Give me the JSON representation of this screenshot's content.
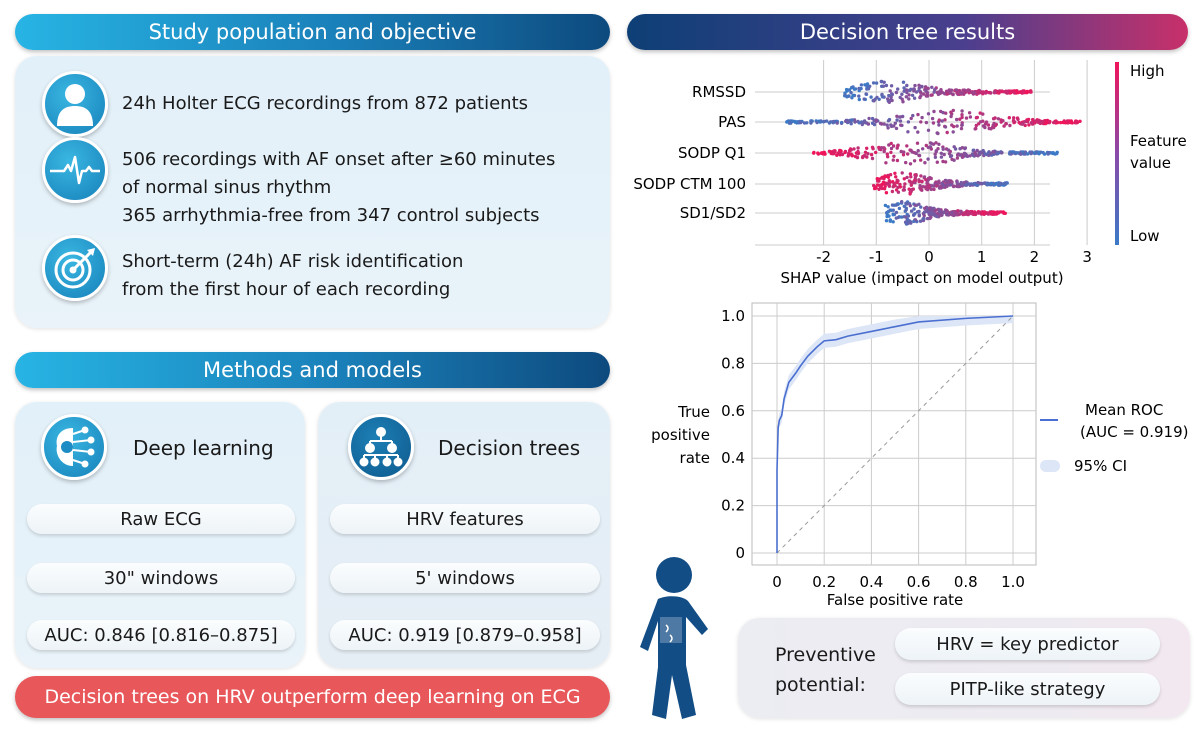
{
  "study": {
    "title": "Study population and objective",
    "items": [
      {
        "icon": "person-icon",
        "lines": [
          "24h Holter ECG recordings from 872 patients"
        ]
      },
      {
        "icon": "ecg-heartbeat-icon",
        "lines": [
          "506 recordings with AF onset after ≥60 minutes",
          "of normal sinus rhythm",
          "365 arrhythmia-free from 347 control subjects"
        ]
      },
      {
        "icon": "target-icon",
        "lines": [
          "Short-term (24h) AF risk identification",
          "from the first hour of each recording"
        ]
      }
    ]
  },
  "methods": {
    "title": "Methods and models",
    "deep": {
      "title": "Deep learning",
      "icon": "brain-circuit-icon",
      "input": "Raw ECG",
      "window": "30\" windows",
      "auc": "AUC: 0.846 [0.816–0.875]"
    },
    "trees": {
      "title": "Decision trees",
      "icon": "hierarchy-tree-icon",
      "input": "HRV features",
      "window": "5' windows",
      "auc": "AUC: 0.919 [0.879–0.958]"
    },
    "conclusion": "Decision trees on HRV outperform deep learning on ECG"
  },
  "results": {
    "title": "Decision tree results",
    "colors": {
      "high": "#f0145a",
      "low": "#3b7ac6",
      "roc": "#4a6fd0",
      "ci": "#dde6f7"
    },
    "shap": {
      "type": "scatter",
      "xlabel": "SHAP value (impact on model output)",
      "xticks": [
        "-2",
        "-1",
        "0",
        "1",
        "2",
        "3"
      ],
      "xlim": [
        -2.9,
        3.1
      ],
      "colorbar": {
        "high": "High",
        "label1": "Feature",
        "label2": "value",
        "low": "Low"
      },
      "features": [
        {
          "name": "RMSSD",
          "min": -1.6,
          "max": 1.95,
          "peak": -0.8,
          "low_side": "left"
        },
        {
          "name": "PAS",
          "min": -2.7,
          "max": 2.9,
          "peak": 0.4,
          "low_side": "left"
        },
        {
          "name": "SODP Q1",
          "min": -2.2,
          "max": 2.45,
          "peak": -0.4,
          "low_side": "right"
        },
        {
          "name": "SODP CTM 100",
          "min": -1.05,
          "max": 1.5,
          "peak": -0.5,
          "low_side": "right"
        },
        {
          "name": "SD1/SD2",
          "min": -0.85,
          "max": 1.45,
          "peak": -0.5,
          "low_side": "left"
        }
      ]
    },
    "roc": {
      "type": "line",
      "xlabel": "False positive rate",
      "ylabel": [
        "True",
        "positive",
        "rate"
      ],
      "xticks": [
        "0",
        "0.2",
        "0.4",
        "0.6",
        "0.8",
        "1.0"
      ],
      "yticks": [
        "0",
        "0.2",
        "0.4",
        "0.6",
        "0.8",
        "1.0"
      ],
      "fpr": [
        0,
        0,
        0.005,
        0.01,
        0.02,
        0.03,
        0.05,
        0.08,
        0.1,
        0.13,
        0.17,
        0.2,
        0.25,
        0.3,
        0.4,
        0.5,
        0.6,
        0.8,
        1
      ],
      "tpr": [
        0,
        0.35,
        0.53,
        0.56,
        0.58,
        0.65,
        0.72,
        0.76,
        0.79,
        0.83,
        0.87,
        0.895,
        0.9,
        0.915,
        0.935,
        0.955,
        0.975,
        0.99,
        1
      ],
      "ci_halfwidth": 0.03,
      "legend": {
        "line1": "Mean ROC",
        "line2": "(AUC = 0.919)",
        "ci": "95% CI"
      }
    },
    "preventive": {
      "label1": "Preventive",
      "label2": "potential:",
      "item1": "HRV = key predictor",
      "item2": "PITP-like strategy"
    }
  }
}
